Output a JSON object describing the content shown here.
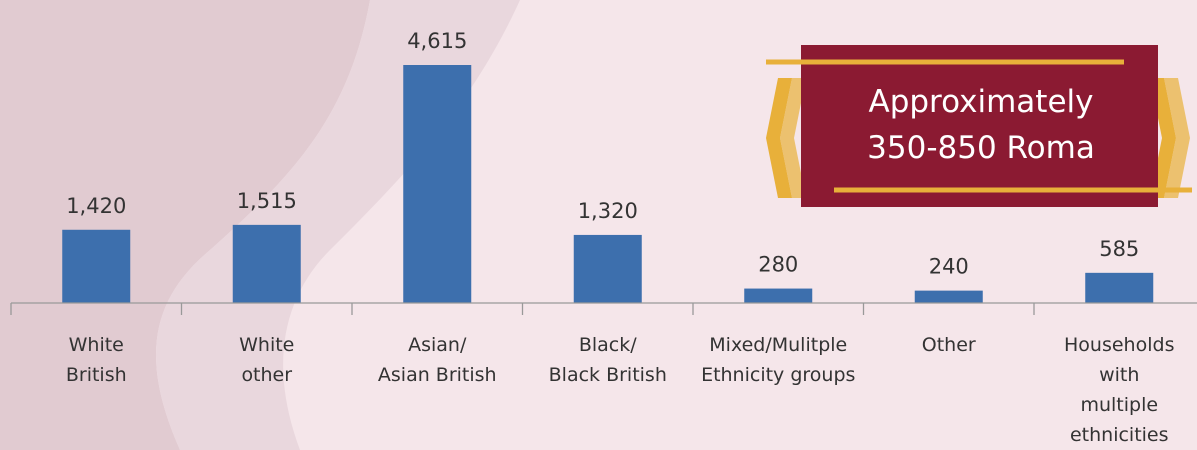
{
  "chart_data": {
    "type": "bar",
    "categories": [
      [
        "White",
        "British"
      ],
      [
        "White",
        "other"
      ],
      [
        "Asian/",
        "Asian British"
      ],
      [
        "Black/",
        "Black British"
      ],
      [
        "Mixed/Mulitple",
        "Ethnicity groups"
      ],
      [
        "Other"
      ],
      [
        "Households",
        "with",
        "multiple",
        "ethnicities"
      ]
    ],
    "values": [
      1420,
      1515,
      4615,
      1320,
      280,
      240,
      585
    ],
    "value_labels": [
      "1,420",
      "1,515",
      "4,615",
      "1,320",
      "280",
      "240",
      "585"
    ],
    "ylim": [
      0,
      5000
    ],
    "grid": false,
    "bar_color": "#3d6fad"
  },
  "callout": {
    "lines": [
      "Approximately",
      "350-850 Roma"
    ],
    "background": "#8b1a32",
    "accent": "#e8b03a"
  },
  "background_color": "#f5e6ea",
  "watermark_color": "#d9c2c9"
}
